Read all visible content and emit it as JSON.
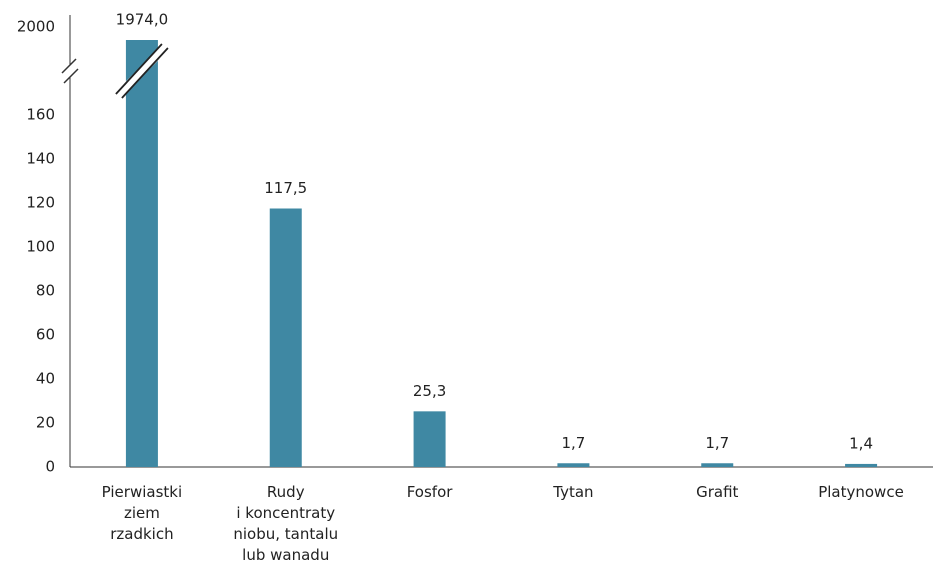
{
  "chart_data": {
    "type": "bar",
    "categories": [
      "Pierwiastki\nziem\nrzadkich",
      "Rudy\ni koncentraty\nniobu, tantalu\nlub wanadu",
      "Fosfor",
      "Tytan",
      "Grafit",
      "Platynowce"
    ],
    "values": [
      1974.0,
      117.5,
      25.3,
      1.7,
      1.7,
      1.4
    ],
    "value_labels": [
      "1974,0",
      "117,5",
      "25,3",
      "1,7",
      "1,7",
      "1,4"
    ],
    "color": "#3f88a3",
    "ylim": [
      0,
      2000
    ],
    "yticks": [
      0,
      20,
      40,
      60,
      80,
      100,
      120,
      140,
      160,
      2000
    ],
    "axis_break": {
      "from": 180,
      "to": 1912
    },
    "grid": false
  }
}
